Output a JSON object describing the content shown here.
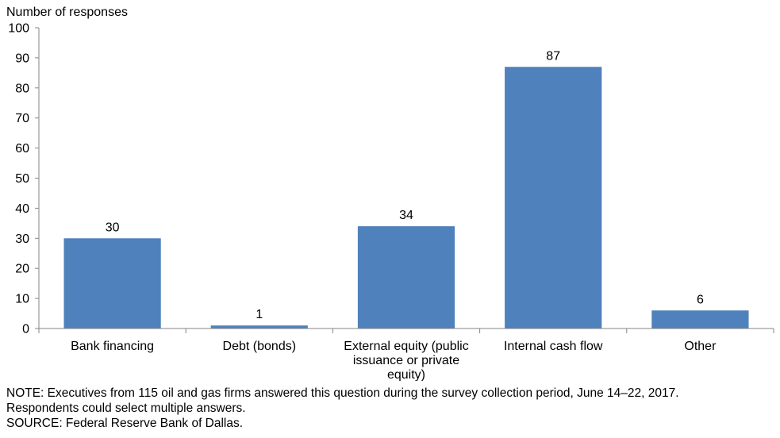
{
  "chart_data": {
    "type": "bar",
    "title": "",
    "ylabel": "Number of responses",
    "xlabel": "",
    "ylim": [
      0,
      100
    ],
    "ytick_step": 10,
    "categories": [
      [
        "Bank financing"
      ],
      [
        "Debt (bonds)"
      ],
      [
        "External equity (public",
        "issuance or private",
        "equity)"
      ],
      [
        "Internal cash flow"
      ],
      [
        "Other"
      ]
    ],
    "values": [
      30,
      1,
      34,
      87,
      6
    ],
    "data_labels": true,
    "bar_color": "#4f81bd",
    "grid": false
  },
  "notes": {
    "note_line1": "NOTE: Executives from 115 oil and gas firms answered this question during the survey collection period, June 14–22, 2017.",
    "note_line2": "Respondents could select multiple answers.",
    "source": "SOURCE: Federal Reserve Bank of Dallas."
  }
}
